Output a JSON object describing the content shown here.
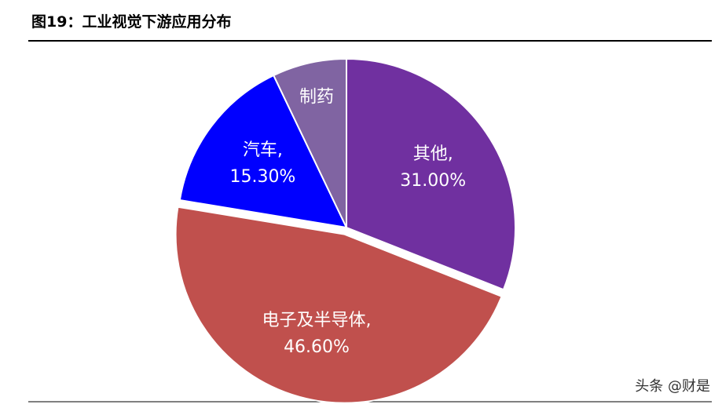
{
  "chart_data": {
    "type": "pie",
    "title": "图19：工业视觉下游应用分布",
    "categories": [
      "其他,",
      "电子及半导体,",
      "汽车,",
      "制药"
    ],
    "values": [
      31.0,
      46.6,
      15.3,
      7.1
    ],
    "value_labels": [
      "31.00%",
      "46.60%",
      "15.30%",
      null
    ],
    "colors": [
      "#7030a0",
      "#c0504d",
      "#0000ff",
      "#8064a2"
    ],
    "exploded": [
      false,
      true,
      false,
      false
    ],
    "watermark": "头条 @财是"
  }
}
